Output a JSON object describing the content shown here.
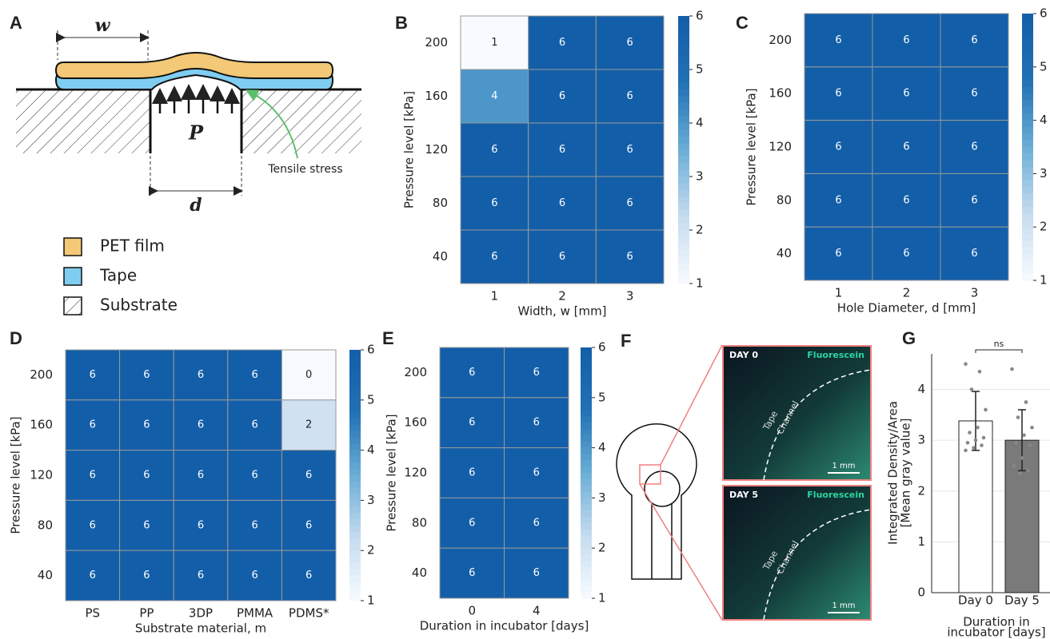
{
  "diagram": {
    "panel": "A",
    "w": "w",
    "P": "P",
    "d": "d",
    "stress": "Tensile stress",
    "legend": [
      "PET film",
      "Tape",
      "Substrate"
    ]
  },
  "images": {
    "panel": "F",
    "items": [
      {
        "day": "DAY 0",
        "stain": "Fluorescein",
        "labels": [
          "Tape",
          "Channel"
        ],
        "scale": "1 mm"
      },
      {
        "day": "DAY 5",
        "stain": "Fluorescein",
        "labels": [
          "Tape",
          "Channel"
        ],
        "scale": "1 mm"
      }
    ]
  },
  "chart_data": [
    {
      "type": "heatmap",
      "panel": "B",
      "xlabel": "Width, w [mm]",
      "ylabel": "Pressure level [kPa]",
      "categories": [
        1,
        2,
        3
      ],
      "rows": [
        200,
        160,
        120,
        80,
        40
      ],
      "values": [
        [
          1,
          6,
          6
        ],
        [
          4,
          6,
          6
        ],
        [
          6,
          6,
          6
        ],
        [
          6,
          6,
          6
        ],
        [
          6,
          6,
          6
        ]
      ],
      "clim": [
        1,
        6
      ],
      "cticks": [
        1,
        2,
        3,
        4,
        5,
        6
      ],
      "colormap": [
        "#f7fbff",
        "#c6dbef",
        "#6baed6",
        "#2171b5",
        "#135ea8"
      ]
    },
    {
      "type": "heatmap",
      "panel": "C",
      "xlabel": "Hole Diameter, d [mm]",
      "ylabel": "Pressure level [kPa]",
      "categories": [
        1,
        2,
        3
      ],
      "rows": [
        200,
        160,
        120,
        80,
        40
      ],
      "values": [
        [
          6,
          6,
          6
        ],
        [
          6,
          6,
          6
        ],
        [
          6,
          6,
          6
        ],
        [
          6,
          6,
          6
        ],
        [
          6,
          6,
          6
        ]
      ],
      "clim": [
        1,
        6
      ],
      "cticks": [
        1,
        2,
        3,
        4,
        5,
        6
      ],
      "colormap": [
        "#f7fbff",
        "#c6dbef",
        "#6baed6",
        "#2171b5",
        "#135ea8"
      ]
    },
    {
      "type": "heatmap",
      "panel": "D",
      "xlabel": "Substrate material, m",
      "ylabel": "Pressure level [kPa]",
      "categories": [
        "PS",
        "PP",
        "3DP",
        "PMMA",
        "PDMS*"
      ],
      "rows": [
        200,
        160,
        120,
        80,
        40
      ],
      "values": [
        [
          6,
          6,
          6,
          6,
          0
        ],
        [
          6,
          6,
          6,
          6,
          2
        ],
        [
          6,
          6,
          6,
          6,
          6
        ],
        [
          6,
          6,
          6,
          6,
          6
        ],
        [
          6,
          6,
          6,
          6,
          6
        ]
      ],
      "clim": [
        1,
        6
      ],
      "cticks": [
        1,
        2,
        3,
        4,
        5,
        6
      ],
      "colormap": [
        "#f7fbff",
        "#c6dbef",
        "#6baed6",
        "#2171b5",
        "#135ea8"
      ]
    },
    {
      "type": "heatmap",
      "panel": "E",
      "xlabel": "Duration in incubator [days]",
      "ylabel": "Pressure level [kPa]",
      "categories": [
        0,
        4
      ],
      "rows": [
        200,
        160,
        120,
        80,
        40
      ],
      "values": [
        [
          6,
          6
        ],
        [
          6,
          6
        ],
        [
          6,
          6
        ],
        [
          6,
          6
        ],
        [
          6,
          6
        ]
      ],
      "clim": [
        1,
        6
      ],
      "cticks": [
        1,
        2,
        3,
        4,
        5,
        6
      ],
      "colormap": [
        "#f7fbff",
        "#c6dbef",
        "#6baed6",
        "#2171b5",
        "#135ea8"
      ]
    },
    {
      "type": "bar",
      "panel": "G",
      "ylabel": [
        "Integrated Density/Area",
        "[Mean gray value]"
      ],
      "xlabel": [
        "Duration in",
        "incubator [days]"
      ],
      "annotation": "ns",
      "categories": [
        "Day 0",
        "Day 5"
      ],
      "values": [
        3.38,
        3.0
      ],
      "errors": [
        0.58,
        0.6
      ],
      "colors": [
        "#ffffff",
        "#7a7a7a"
      ],
      "points": [
        [
          4.5,
          4.35,
          4.0,
          3.6,
          3.25,
          3.15,
          3.05,
          3.0,
          2.95,
          2.9,
          2.85,
          2.8
        ],
        [
          4.4,
          3.75,
          3.45,
          3.25,
          3.1,
          2.95,
          2.9,
          2.65,
          2.5,
          2.4,
          2.35
        ]
      ],
      "ylim": [
        0,
        4.7
      ],
      "yticks": [
        0,
        1,
        2,
        3,
        4
      ],
      "grid": true
    }
  ]
}
